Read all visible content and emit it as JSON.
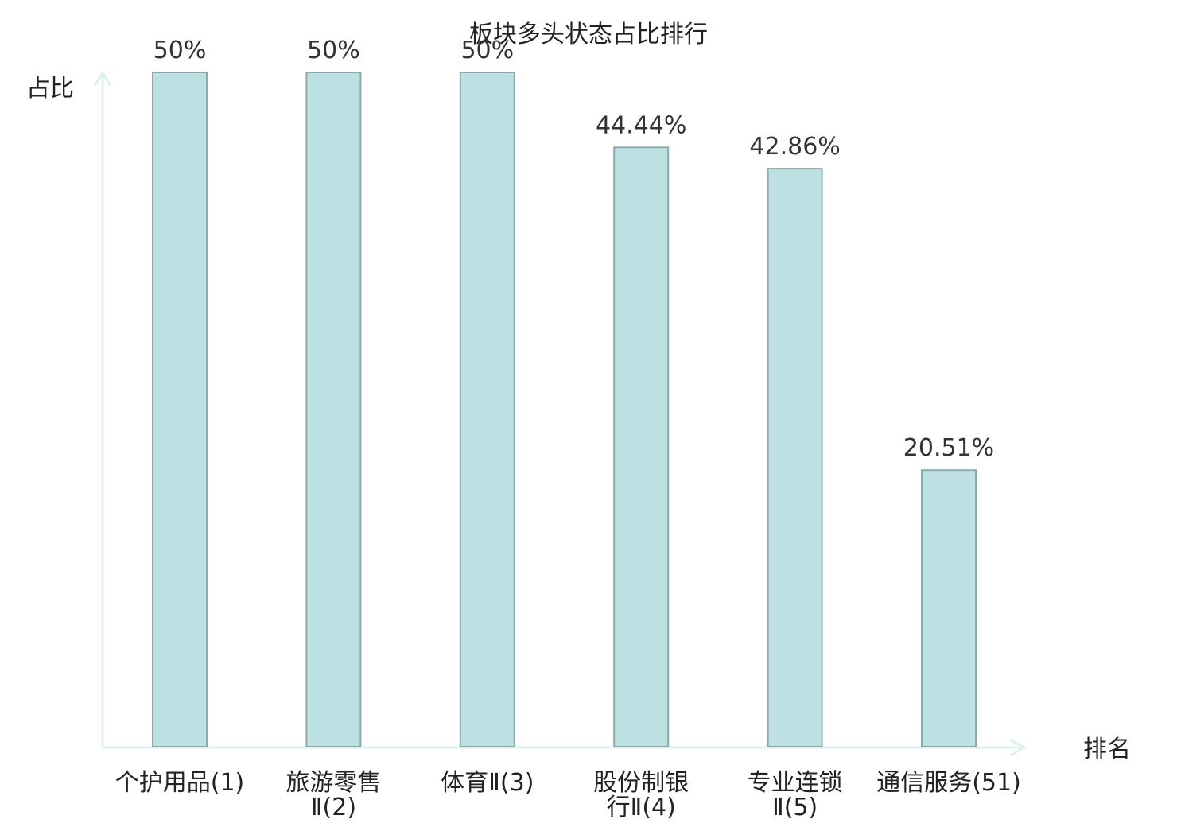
{
  "chart_data": {
    "type": "bar",
    "title": "板块多头状态占比排行",
    "ylabel": "占比",
    "xlabel": "排名",
    "ylim": [
      0,
      50
    ],
    "grid": false,
    "categories": [
      [
        "个护用品(1)"
      ],
      [
        "旅游零售",
        "Ⅱ(2)"
      ],
      [
        "体育Ⅱ(3)"
      ],
      [
        "股份制银",
        "行Ⅱ(4)"
      ],
      [
        "专业连锁",
        "Ⅱ(5)"
      ],
      [
        "通信服务(51)"
      ]
    ],
    "values": [
      50,
      50,
      50,
      44.44,
      42.86,
      20.51
    ],
    "value_labels": [
      "50%",
      "50%",
      "50%",
      "44.44%",
      "42.86%",
      "20.51%"
    ],
    "highlight_index": 5,
    "colors": {
      "bar_fill": "#bde0e3",
      "bar_stroke": "#8ea9aa",
      "axis": "#dcf1ee",
      "highlight_label": "#e31a1a",
      "text": "#222222"
    }
  }
}
